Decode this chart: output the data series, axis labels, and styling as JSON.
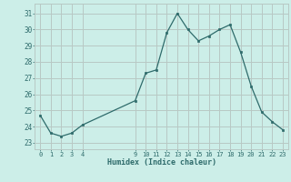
{
  "x": [
    0,
    1,
    2,
    3,
    4,
    9,
    10,
    11,
    12,
    13,
    14,
    15,
    16,
    17,
    18,
    19,
    20,
    21,
    22,
    23
  ],
  "y": [
    24.7,
    23.6,
    23.4,
    23.6,
    24.1,
    25.6,
    27.3,
    27.5,
    29.8,
    31.0,
    30.0,
    29.3,
    29.6,
    30.0,
    30.3,
    28.6,
    26.5,
    24.9,
    24.3,
    23.8
  ],
  "xticks": [
    0,
    1,
    2,
    3,
    4,
    9,
    10,
    11,
    12,
    13,
    14,
    15,
    16,
    17,
    18,
    19,
    20,
    21,
    22,
    23
  ],
  "yticks": [
    23,
    24,
    25,
    26,
    27,
    28,
    29,
    30,
    31
  ],
  "ylim": [
    22.6,
    31.6
  ],
  "xlim": [
    -0.5,
    23.5
  ],
  "xlabel": "Humidex (Indice chaleur)",
  "line_color": "#2e6b6b",
  "marker_color": "#2e6b6b",
  "bg_color": "#cceee8",
  "grid_color": "#b8c8c4",
  "tick_color": "#2e6b6b",
  "xlabel_color": "#2e6b6b"
}
